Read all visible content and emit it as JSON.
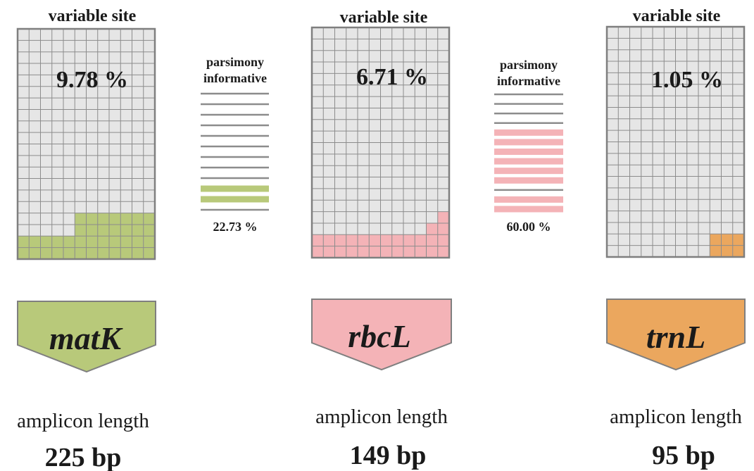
{
  "title_text": "variable site",
  "pi_title_line1": "parsimony",
  "pi_title_line2": "informative",
  "colors": {
    "grid_bg": "#e6e6e6",
    "grid_line": "#8c8c8c",
    "border": "#7f7f7f",
    "stripe_gray": "#8c8c8c"
  },
  "panels": [
    {
      "gene": "matK",
      "variable_site_pct": "9.78 %",
      "amplicon_caption": "amplicon length",
      "amplicon_length": "225 bp",
      "color": "#b8c97a",
      "grid_cols": 12,
      "grid_rows": 20,
      "fill_steps": [
        {
          "cols_from": 0,
          "cols_to": 12,
          "rows": 2
        },
        {
          "cols_from": 5,
          "cols_to": 12,
          "rows": 4
        }
      ]
    },
    {
      "gene": "rbcL",
      "variable_site_pct": "6.71 %",
      "amplicon_caption": "amplicon length",
      "amplicon_length": "149 bp",
      "color": "#f4b3b7",
      "grid_cols": 12,
      "grid_rows": 20,
      "fill_steps": [
        {
          "cols_from": 0,
          "cols_to": 12,
          "rows": 2
        },
        {
          "cols_from": 10,
          "cols_to": 12,
          "rows": 3
        },
        {
          "cols_from": 11,
          "cols_to": 12,
          "rows": 4
        }
      ]
    },
    {
      "gene": "trnL",
      "variable_site_pct": "1.05 %",
      "amplicon_caption": "amplicon length",
      "amplicon_length": "95 bp",
      "color": "#eba75e",
      "grid_cols": 12,
      "grid_rows": 20,
      "fill_steps": [
        {
          "cols_from": 9,
          "cols_to": 12,
          "rows": 2
        }
      ]
    }
  ],
  "parsimony": [
    {
      "pct": "22.73 %",
      "color": "#b8c97a",
      "stripes": [
        "gray",
        "gray",
        "gray",
        "gray",
        "gray",
        "gray",
        "gray",
        "gray",
        "gray",
        "color",
        "color",
        "gray"
      ]
    },
    {
      "pct": "60.00 %",
      "color": "#f4b3b7",
      "stripes": [
        "gray",
        "gray",
        "gray",
        "gray",
        "color",
        "color",
        "color",
        "color",
        "color",
        "color",
        "gray",
        "color",
        "color"
      ]
    }
  ]
}
